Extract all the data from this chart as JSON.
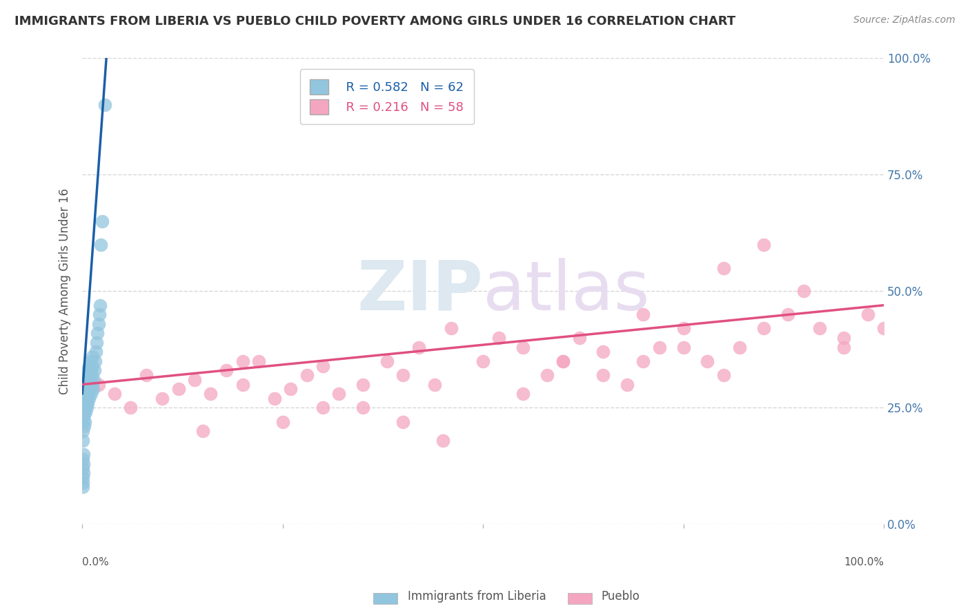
{
  "title": "IMMIGRANTS FROM LIBERIA VS PUEBLO CHILD POVERTY AMONG GIRLS UNDER 16 CORRELATION CHART",
  "source": "Source: ZipAtlas.com",
  "ylabel": "Child Poverty Among Girls Under 16",
  "legend_blue_r": "R = 0.582",
  "legend_blue_n": "N = 62",
  "legend_pink_r": "R = 0.216",
  "legend_pink_n": "N = 58",
  "legend_blue_label": "Immigrants from Liberia",
  "legend_pink_label": "Pueblo",
  "blue_color": "#92c5de",
  "pink_color": "#f4a6c0",
  "trend_blue_color": "#1a5fa8",
  "trend_pink_color": "#e05080",
  "watermark_zip": "ZIP",
  "watermark_atlas": "atlas",
  "xlim": [
    0,
    100
  ],
  "ylim": [
    0,
    100
  ],
  "ytick_values": [
    0,
    25,
    50,
    75,
    100
  ],
  "ytick_labels_right": [
    "0.0%",
    "25.0%",
    "50.0%",
    "75.0%",
    "100.0%"
  ],
  "grid_color": "#cccccc",
  "background": "#ffffff",
  "blue_x": [
    0.05,
    0.08,
    0.1,
    0.12,
    0.15,
    0.18,
    0.2,
    0.22,
    0.25,
    0.28,
    0.3,
    0.32,
    0.35,
    0.38,
    0.4,
    0.42,
    0.45,
    0.48,
    0.5,
    0.52,
    0.55,
    0.58,
    0.6,
    0.62,
    0.65,
    0.68,
    0.7,
    0.72,
    0.75,
    0.78,
    0.8,
    0.85,
    0.9,
    0.95,
    1.0,
    1.05,
    1.1,
    1.15,
    1.2,
    1.25,
    1.3,
    1.35,
    1.4,
    1.5,
    1.6,
    1.7,
    1.8,
    1.9,
    2.0,
    2.1,
    2.2,
    2.3,
    2.5,
    2.8,
    0.02,
    0.04,
    0.06,
    0.07,
    0.09,
    0.11,
    0.13,
    0.14
  ],
  "blue_y": [
    20,
    22,
    18,
    25,
    23,
    27,
    21,
    24,
    26,
    28,
    30,
    22,
    25,
    27,
    29,
    31,
    24,
    26,
    28,
    30,
    32,
    25,
    27,
    29,
    31,
    33,
    26,
    28,
    30,
    32,
    34,
    27,
    29,
    31,
    33,
    35,
    28,
    30,
    32,
    34,
    36,
    29,
    31,
    33,
    35,
    37,
    39,
    41,
    43,
    45,
    47,
    60,
    65,
    90,
    10,
    12,
    14,
    8,
    9,
    11,
    13,
    15
  ],
  "pink_x": [
    2,
    4,
    6,
    8,
    10,
    12,
    14,
    16,
    18,
    20,
    22,
    24,
    26,
    28,
    30,
    32,
    35,
    38,
    40,
    42,
    44,
    46,
    50,
    52,
    55,
    58,
    60,
    62,
    65,
    68,
    70,
    72,
    75,
    78,
    80,
    82,
    85,
    88,
    90,
    92,
    95,
    98,
    100,
    15,
    25,
    35,
    45,
    55,
    65,
    75,
    85,
    95,
    20,
    40,
    60,
    80,
    30,
    70
  ],
  "pink_y": [
    30,
    28,
    25,
    32,
    27,
    29,
    31,
    28,
    33,
    30,
    35,
    27,
    29,
    32,
    34,
    28,
    30,
    35,
    32,
    38,
    30,
    42,
    35,
    40,
    38,
    32,
    35,
    40,
    37,
    30,
    35,
    38,
    42,
    35,
    55,
    38,
    42,
    45,
    50,
    42,
    40,
    45,
    42,
    20,
    22,
    25,
    18,
    28,
    32,
    38,
    60,
    38,
    35,
    22,
    35,
    32,
    25,
    45
  ],
  "blue_trend_x0": 0,
  "blue_trend_y0": 28,
  "blue_trend_x1": 3.0,
  "blue_trend_y1": 100,
  "blue_trend_dashed_x0": 1.8,
  "blue_trend_dashed_y0": 70,
  "blue_trend_dashed_x1": 2.5,
  "blue_trend_dashed_y1": 100,
  "pink_trend_x0": 0,
  "pink_trend_y0": 30,
  "pink_trend_x1": 100,
  "pink_trend_y1": 47
}
